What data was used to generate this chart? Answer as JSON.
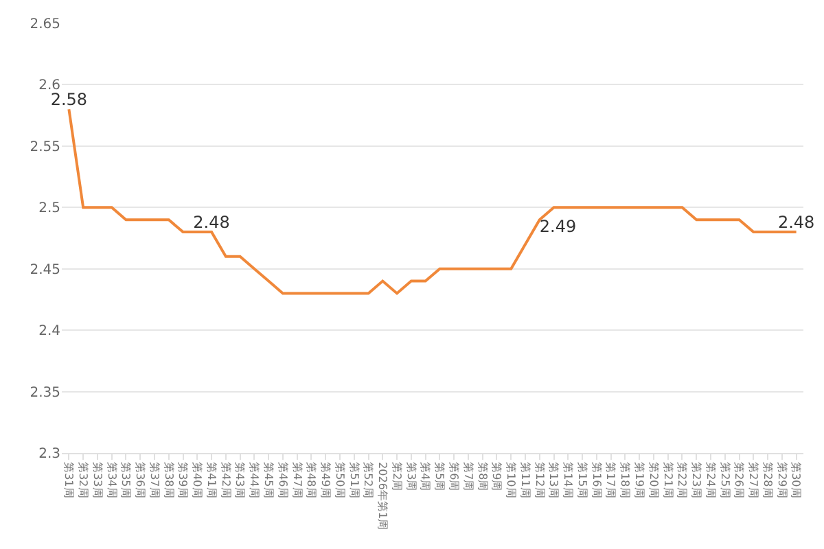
{
  "chart_data": {
    "type": "line",
    "categories": [
      "第31周",
      "第32周",
      "第33周",
      "第34周",
      "第35周",
      "第36周",
      "第37周",
      "第38周",
      "第39周",
      "第40周",
      "第41周",
      "第42周",
      "第43周",
      "第44周",
      "第45周",
      "第46周",
      "第47周",
      "第48周",
      "第49周",
      "第50周",
      "第51周",
      "第52周",
      "2026年第1周",
      "第2周",
      "第3周",
      "第4周",
      "第5周",
      "第6周",
      "第7周",
      "第8周",
      "第9周",
      "第10周",
      "第11周",
      "第12周",
      "第13周",
      "第14周",
      "第15周",
      "第16周",
      "第17周",
      "第18周",
      "第19周",
      "第20周",
      "第21周",
      "第22周",
      "第23周",
      "第24周",
      "第25周",
      "第26周",
      "第27周",
      "第28周",
      "第29周",
      "第30周"
    ],
    "series": [
      {
        "color": "#f0883a",
        "values": [
          2.58,
          2.5,
          2.5,
          2.5,
          2.49,
          2.49,
          2.49,
          2.49,
          2.48,
          2.48,
          2.48,
          2.46,
          2.46,
          2.45,
          2.44,
          2.43,
          2.43,
          2.43,
          2.43,
          2.43,
          2.43,
          2.43,
          2.44,
          2.43,
          2.44,
          2.44,
          2.45,
          2.45,
          2.45,
          2.45,
          2.45,
          2.45,
          2.47,
          2.49,
          2.5,
          2.5,
          2.5,
          2.5,
          2.5,
          2.5,
          2.5,
          2.5,
          2.5,
          2.5,
          2.49,
          2.49,
          2.49,
          2.49,
          2.48,
          2.48,
          2.48,
          2.48
        ],
        "value_labels": [
          "2.58",
          null,
          null,
          null,
          null,
          null,
          null,
          null,
          null,
          null,
          "2.48",
          null,
          null,
          null,
          null,
          null,
          null,
          null,
          null,
          null,
          null,
          null,
          null,
          null,
          null,
          null,
          null,
          null,
          null,
          null,
          null,
          null,
          null,
          "2.49",
          null,
          null,
          null,
          null,
          null,
          null,
          null,
          null,
          null,
          null,
          null,
          null,
          null,
          null,
          null,
          null,
          null,
          "2.48"
        ]
      }
    ],
    "ylim": [
      2.3,
      2.65
    ],
    "yticks": [
      2.3,
      2.35,
      2.4,
      2.45,
      2.5,
      2.55,
      2.6,
      2.65
    ],
    "grid": "y",
    "legend": false,
    "marker": "none",
    "line_style": "solid"
  }
}
